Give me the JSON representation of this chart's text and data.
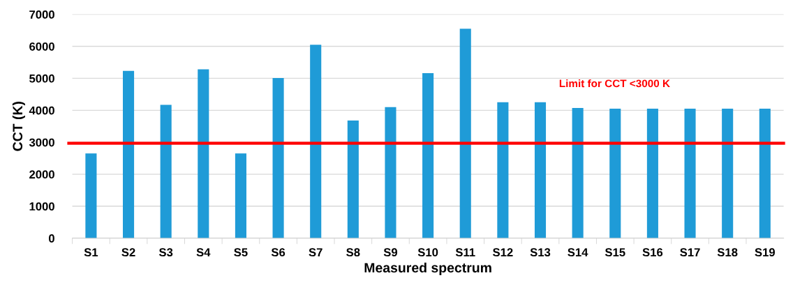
{
  "chart_data": {
    "type": "bar",
    "xlabel": "Measured spectrum",
    "ylabel": "CCT (K)",
    "categories": [
      "S1",
      "S2",
      "S3",
      "S4",
      "S5",
      "S6",
      "S7",
      "S8",
      "S9",
      "S10",
      "S11",
      "S12",
      "S13",
      "S14",
      "S15",
      "S16",
      "S17",
      "S18",
      "S19"
    ],
    "values": [
      2650,
      5230,
      4170,
      5280,
      2650,
      5010,
      6050,
      3680,
      4100,
      5160,
      6550,
      4250,
      4250,
      4070,
      4050,
      4050,
      4050,
      4050,
      4050
    ],
    "color": "#1f9bd7",
    "ylim": [
      0,
      7000
    ],
    "yticks": [
      0,
      1000,
      2000,
      3000,
      4000,
      5000,
      6000,
      7000
    ],
    "grid": "y",
    "ref_lines": [
      {
        "axis": "y",
        "value": 2970,
        "label": "Limit for CCT <3000 K",
        "color": "#ff0000",
        "line_style": "solid"
      }
    ]
  }
}
